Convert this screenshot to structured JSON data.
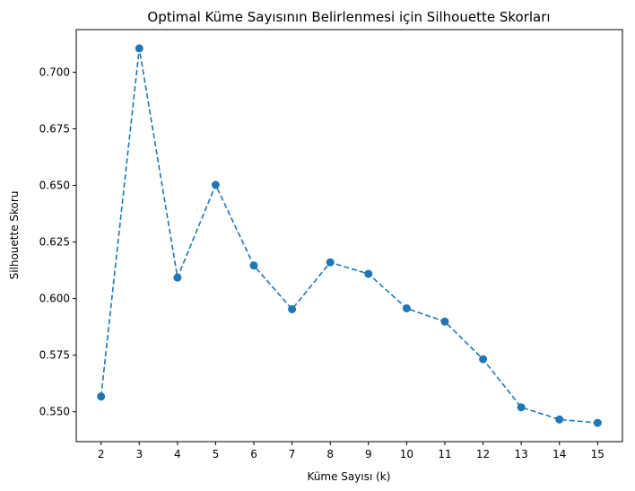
{
  "chart_data": {
    "type": "line",
    "title": "Optimal Küme Sayısının Belirlenmesi için Silhouette Skorları",
    "xlabel": "Küme Sayısı (k)",
    "ylabel": "Silhouette Skoru",
    "x": [
      2,
      3,
      4,
      5,
      6,
      7,
      8,
      9,
      10,
      11,
      12,
      13,
      14,
      15
    ],
    "x_tick_labels": [
      "2",
      "3",
      "4",
      "5",
      "6",
      "7",
      "8",
      "9",
      "10",
      "11",
      "12",
      "13",
      "14",
      "15"
    ],
    "y": [
      0.5567,
      0.7105,
      0.6093,
      0.6502,
      0.6146,
      0.5953,
      0.616,
      0.6109,
      0.5957,
      0.5898,
      0.5732,
      0.552,
      0.5466,
      0.5451
    ],
    "y_ticks": [
      0.55,
      0.575,
      0.6,
      0.625,
      0.65,
      0.675,
      0.7
    ],
    "y_tick_labels": [
      "0.550",
      "0.575",
      "0.600",
      "0.625",
      "0.650",
      "0.675",
      "0.700"
    ],
    "xlim": [
      1.35,
      15.65
    ],
    "ylim": [
      0.5368,
      0.7188
    ],
    "line_style": "dashed",
    "marker": "circle",
    "grid": false,
    "color": "#1f77b4"
  }
}
